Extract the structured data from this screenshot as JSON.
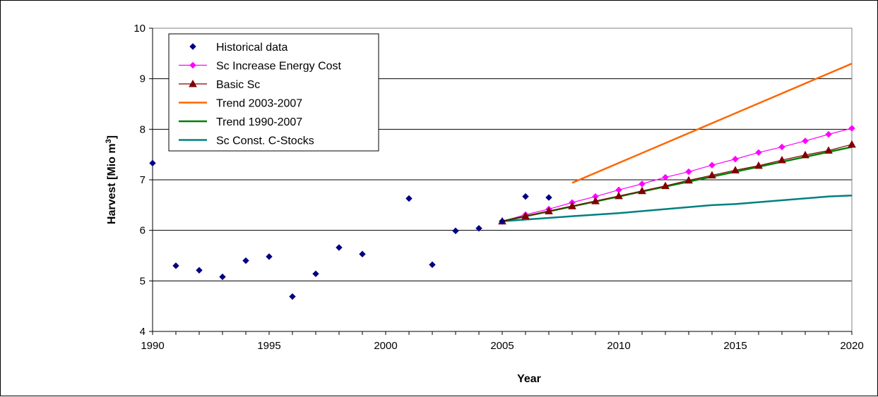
{
  "chart_data": {
    "type": "line",
    "xlabel": "Year",
    "ylabel": "Harvest [Mio m",
    "ylabel_sup": "3",
    "ylabel_end": "]",
    "xlim": [
      1990,
      2020
    ],
    "ylim": [
      4,
      10
    ],
    "xticks": [
      "1990",
      "1995",
      "2000",
      "2005",
      "2010",
      "2015",
      "2020"
    ],
    "yticks": [
      "4",
      "5",
      "6",
      "7",
      "8",
      "9",
      "10"
    ],
    "grid": "horizontal",
    "legend_position": "top-left",
    "series": [
      {
        "name": "Historical data",
        "style": "markers",
        "marker": "diamond",
        "color": "#000080",
        "x": [
          1990,
          1991,
          1992,
          1993,
          1994,
          1995,
          1996,
          1997,
          1998,
          1999,
          2001,
          2002,
          2003,
          2004,
          2005,
          2006,
          2007
        ],
        "y": [
          7.33,
          5.3,
          5.21,
          5.08,
          5.4,
          5.48,
          4.69,
          5.14,
          5.66,
          5.53,
          6.63,
          5.32,
          5.99,
          6.04,
          6.18,
          6.67,
          6.65
        ]
      },
      {
        "name": "Sc Increase Energy Cost",
        "style": "line-markers",
        "marker": "diamond",
        "color": "#FF00FF",
        "x": [
          2005,
          2006,
          2007,
          2008,
          2009,
          2010,
          2011,
          2012,
          2013,
          2014,
          2015,
          2016,
          2017,
          2018,
          2019,
          2020
        ],
        "y": [
          6.18,
          6.31,
          6.42,
          6.55,
          6.67,
          6.8,
          6.92,
          7.05,
          7.16,
          7.29,
          7.41,
          7.54,
          7.65,
          7.77,
          7.9,
          8.02
        ]
      },
      {
        "name": "Basic Sc",
        "style": "line-markers",
        "marker": "triangle",
        "color": "#800000",
        "x": [
          2005,
          2006,
          2007,
          2008,
          2009,
          2010,
          2011,
          2012,
          2013,
          2014,
          2015,
          2016,
          2017,
          2018,
          2019,
          2020
        ],
        "y": [
          6.18,
          6.28,
          6.38,
          6.48,
          6.58,
          6.68,
          6.78,
          6.88,
          6.99,
          7.09,
          7.19,
          7.28,
          7.39,
          7.49,
          7.58,
          7.7
        ]
      },
      {
        "name": "Trend 2003-2007",
        "style": "line",
        "color": "#FF6600",
        "x": [
          2008,
          2020
        ],
        "y": [
          6.94,
          9.3
        ]
      },
      {
        "name": "Trend 1990-2007",
        "style": "line",
        "color": "#008000",
        "x": [
          2005,
          2020
        ],
        "y": [
          6.18,
          7.65
        ]
      },
      {
        "name": "Sc Const. C-Stocks",
        "style": "line",
        "color": "#008080",
        "x": [
          2005,
          2008,
          2010,
          2014,
          2015,
          2019,
          2020
        ],
        "y": [
          6.18,
          6.28,
          6.34,
          6.5,
          6.52,
          6.67,
          6.69
        ]
      }
    ]
  }
}
